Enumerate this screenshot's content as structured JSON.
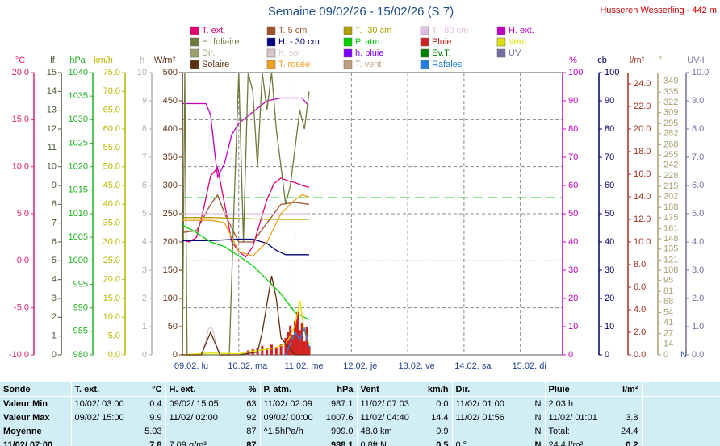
{
  "chart_data": {
    "type": "line",
    "title": "Semaine 09/02/26 - 15/02/26 (S 7)",
    "subtitle": "Husseren Wesserling - 442 m",
    "xlim": [
      0,
      162
    ],
    "xticks": [
      {
        "value": 0,
        "label": "09.02. lu"
      },
      {
        "value": 24,
        "label": "10.02. ma"
      },
      {
        "value": 48,
        "label": "11.02. me"
      },
      {
        "value": 72,
        "label": "12.02. je"
      },
      {
        "value": 96,
        "label": "13.02. ve"
      },
      {
        "value": 120,
        "label": "14.02. sa"
      },
      {
        "value": 144,
        "label": "15.02. di"
      }
    ],
    "grid": true,
    "axes": [
      {
        "label": "°C",
        "side": "left",
        "color": "#e0206f",
        "ylim": [
          -10,
          20
        ],
        "yticks": [
          {
            "value": -10,
            "label": "-10.0"
          },
          {
            "value": -5,
            "label": "-5.0"
          },
          {
            "value": 0,
            "label": "0.0"
          },
          {
            "value": 5,
            "label": "5.0"
          },
          {
            "value": 10,
            "label": "10.0"
          },
          {
            "value": 15,
            "label": "15.0"
          },
          {
            "value": 20,
            "label": "20.0"
          }
        ]
      },
      {
        "label": "lf",
        "side": "left",
        "color": "#4a5a3a",
        "ylim": [
          0,
          15
        ],
        "yticks": [
          0,
          1,
          2,
          3,
          4,
          5,
          6,
          7,
          8,
          9,
          10,
          11,
          12,
          13,
          14,
          15
        ]
      },
      {
        "label": "hPa",
        "side": "left",
        "color": "#20b020",
        "ylim": [
          980,
          1040
        ],
        "yticks": [
          980,
          985,
          990,
          995,
          1000,
          1005,
          1010,
          1015,
          1020,
          1025,
          1030,
          1035,
          1040
        ]
      },
      {
        "label": "km/h",
        "side": "left",
        "color": "#b8b800",
        "ylim": [
          0,
          75
        ],
        "yticks": [
          {
            "value": 0,
            "label": "0.0"
          },
          {
            "value": 5,
            "label": "5.0"
          },
          {
            "value": 10,
            "label": "10.0"
          },
          {
            "value": 15,
            "label": "15.0"
          },
          {
            "value": 20,
            "label": "20.0"
          },
          {
            "value": 25,
            "label": "25.0"
          },
          {
            "value": 30,
            "label": "30.0"
          },
          {
            "value": 35,
            "label": "35.0"
          },
          {
            "value": 40,
            "label": "40.0"
          },
          {
            "value": 45,
            "label": "45.0"
          },
          {
            "value": 50,
            "label": "50.0"
          },
          {
            "value": 55,
            "label": "55.0"
          },
          {
            "value": 60,
            "label": "60.0"
          },
          {
            "value": 65,
            "label": "65.0"
          },
          {
            "value": 70,
            "label": "70.0"
          },
          {
            "value": 75,
            "label": "75.0"
          }
        ]
      },
      {
        "label": "h",
        "side": "left",
        "color": "#b0b0b0",
        "ylim": [
          0,
          10
        ],
        "yticks": [
          0,
          1,
          2,
          3,
          4,
          5,
          6,
          7,
          8,
          9,
          10
        ]
      },
      {
        "label": "W/m²",
        "side": "left",
        "color": "#603010",
        "ylim": [
          0,
          500
        ],
        "yticks": [
          0,
          50,
          100,
          150,
          200,
          250,
          300,
          350,
          400,
          450,
          500
        ]
      },
      {
        "label": "%",
        "side": "right",
        "color": "#c000c0",
        "ylim": [
          0,
          100
        ],
        "yticks": [
          0,
          10,
          20,
          30,
          40,
          50,
          60,
          70,
          80,
          90,
          100
        ]
      },
      {
        "label": "cb",
        "side": "right",
        "color": "#000060",
        "ylim": [
          0,
          100
        ],
        "yticks": [
          0,
          10,
          20,
          30,
          40,
          50,
          60,
          70,
          80,
          90,
          100
        ]
      },
      {
        "label": "l/m²",
        "side": "right",
        "color": "#a03020",
        "ylim": [
          0,
          25
        ],
        "yticks": [
          {
            "value": 0,
            "label": "0.0"
          },
          {
            "value": 2,
            "label": "2.0"
          },
          {
            "value": 4,
            "label": "4.0"
          },
          {
            "value": 6,
            "label": "6.0"
          },
          {
            "value": 8,
            "label": "8.0"
          },
          {
            "value": 10,
            "label": "10.0"
          },
          {
            "value": 12,
            "label": "12.0"
          },
          {
            "value": 14,
            "label": "14.0"
          },
          {
            "value": 16,
            "label": "16.0"
          },
          {
            "value": 18,
            "label": "18.0"
          },
          {
            "value": 20,
            "label": "20.0"
          },
          {
            "value": 22,
            "label": "22.0"
          },
          {
            "value": 24,
            "label": "24.0"
          }
        ]
      },
      {
        "label": "°",
        "side": "right",
        "color": "#a8a070",
        "north_label": "N",
        "ylim": [
          0,
          360
        ],
        "yticks": [
          0,
          14,
          27,
          41,
          54,
          68,
          81,
          95,
          108,
          121,
          135,
          148,
          161,
          175,
          188,
          202,
          215,
          228,
          242,
          255,
          268,
          282,
          295,
          309,
          322,
          335,
          349
        ]
      },
      {
        "label": "UV-I",
        "side": "right",
        "color": "#7070a0",
        "ylim": [
          0,
          10
        ],
        "yticks": [
          {
            "value": 0,
            "label": "0.0"
          },
          {
            "value": 1,
            "label": "1.0"
          },
          {
            "value": 2,
            "label": "2.0"
          },
          {
            "value": 3,
            "label": "3.0"
          },
          {
            "value": 4,
            "label": "4.0"
          },
          {
            "value": 5,
            "label": "5.0"
          },
          {
            "value": 6,
            "label": "6.0"
          },
          {
            "value": 7,
            "label": "7.0"
          },
          {
            "value": 8,
            "label": "8.0"
          },
          {
            "value": 9,
            "label": "9.0"
          },
          {
            "value": 10,
            "label": "10.0"
          }
        ]
      }
    ],
    "series": [
      {
        "name": "T. ext.",
        "color": "#e0006f",
        "axis": "°C",
        "x": [
          0,
          3,
          6,
          9,
          12,
          15,
          18,
          21,
          24,
          27,
          30,
          33,
          36,
          39,
          42,
          45,
          48,
          51,
          54
        ],
        "values": [
          2.2,
          2.0,
          2.5,
          5.5,
          9,
          9.9,
          6,
          2,
          1,
          0.4,
          1.5,
          4,
          6.5,
          8.2,
          8.8,
          8.5,
          8.3,
          8,
          7.8
        ]
      },
      {
        "name": "T. 5 cm",
        "color": "#a0522d",
        "axis": "°C",
        "x": [
          0,
          6,
          12,
          15,
          18,
          24,
          30,
          36,
          42,
          48,
          54
        ],
        "values": [
          3,
          3.2,
          6,
          7,
          5,
          2,
          2,
          4,
          6,
          6.2,
          6
        ]
      },
      {
        "name": "T. -30 cm",
        "color": "#b0a000",
        "axis": "°C",
        "x": [
          0,
          12,
          24,
          36,
          54
        ],
        "values": [
          4.6,
          4.6,
          4.5,
          4.4,
          4.4
        ]
      },
      {
        "name": "T. -80 cm",
        "color": "#e0c0e0",
        "axis": "°C",
        "x": [
          0,
          54
        ],
        "values": [
          5,
          5
        ]
      },
      {
        "name": "H. ext.",
        "color": "#c000c0",
        "axis": "%",
        "x": [
          0,
          6,
          10,
          12,
          14,
          15,
          18,
          21,
          24,
          30,
          36,
          42,
          48,
          51,
          54
        ],
        "values": [
          89,
          89,
          89,
          85,
          70,
          63,
          68,
          78,
          82,
          86,
          90,
          91,
          91,
          91,
          88
        ]
      },
      {
        "name": "H. foliaire",
        "color": "#6b7b3b",
        "axis": "lf",
        "x": [
          0,
          1,
          2,
          4,
          12,
          20,
          22,
          24,
          26,
          28,
          30,
          32,
          34,
          36,
          38,
          40,
          42,
          44,
          46,
          48,
          50,
          52,
          54
        ],
        "values": [
          0,
          15,
          0,
          0,
          0,
          0,
          8,
          15,
          6,
          15,
          14,
          10,
          15,
          13,
          15,
          12,
          10,
          8,
          9,
          11,
          13,
          12,
          14
        ]
      },
      {
        "name": "H. - 30 cm",
        "color": "#000080",
        "axis": "cb",
        "x": [
          0,
          12,
          24,
          30,
          36,
          40,
          44,
          54
        ],
        "values": [
          40.5,
          40.5,
          41,
          41,
          39.5,
          37,
          35.5,
          35.5
        ]
      },
      {
        "name": "P. atm.",
        "color": "#00d000",
        "axis": "hPa",
        "x": [
          0,
          6,
          12,
          18,
          24,
          30,
          36,
          42,
          48,
          54
        ],
        "values": [
          1007.6,
          1006,
          1004,
          1003,
          1001,
          999,
          996,
          993,
          989,
          987.5
        ]
      },
      {
        "name": "Pluie",
        "color": "#d02020",
        "axis": "l/m²",
        "style": "bar",
        "x": [
          28,
          30,
          32,
          34,
          36,
          38,
          40,
          42,
          44,
          45,
          46,
          47,
          48,
          49,
          50,
          51,
          52,
          53,
          54
        ],
        "values": [
          0.4,
          0.5,
          0.6,
          0.8,
          0.6,
          0.9,
          0.7,
          1.0,
          1.5,
          2.0,
          2.6,
          1.8,
          3.0,
          3.8,
          2.2,
          2.8,
          1.2,
          2.5,
          0.8
        ]
      },
      {
        "name": "Vent",
        "color": "#e0e000",
        "axis": "km/h",
        "x": [
          0,
          12,
          24,
          30,
          36,
          40,
          44,
          46,
          48,
          50,
          52,
          54
        ],
        "values": [
          0,
          0.5,
          0.3,
          1,
          1.5,
          2,
          3,
          5,
          8,
          14.4,
          6,
          3
        ]
      },
      {
        "name": "Dir.",
        "color": "#a0a070",
        "axis": "°",
        "x": [],
        "values": []
      },
      {
        "name": "h. sol",
        "color": "#d8c8c8",
        "axis": "h",
        "x": [
          8,
          10,
          11,
          12,
          13,
          14,
          16
        ],
        "values": [
          0,
          0.5,
          0.9,
          1.0,
          0.9,
          0.5,
          0
        ]
      },
      {
        "name": "h. pluie",
        "color": "#8000ff",
        "axis": "h",
        "x": [],
        "values": []
      },
      {
        "name": "Ev.T.",
        "color": "#008000",
        "axis": "l/m²",
        "x": [],
        "values": []
      },
      {
        "name": "UV",
        "color": "#7070a0",
        "axis": "UV-I",
        "x": [],
        "values": []
      },
      {
        "name": "Solaire",
        "color": "#603010",
        "axis": "W/m²",
        "x": [
          0,
          8,
          10,
          12,
          14,
          16,
          24,
          32,
          34,
          36,
          38,
          40,
          42,
          48,
          54
        ],
        "values": [
          0,
          0,
          20,
          40,
          20,
          0,
          0,
          5,
          40,
          90,
          140,
          100,
          30,
          0,
          0
        ]
      },
      {
        "name": "T. rosée",
        "color": "#f0a020",
        "axis": "°C",
        "x": [
          0,
          6,
          12,
          15,
          18,
          21,
          24,
          30,
          36,
          42,
          48,
          51,
          54
        ],
        "values": [
          4.3,
          4.3,
          4.3,
          4.2,
          4.0,
          2.5,
          1,
          0.5,
          2,
          5,
          6.5,
          7,
          6.8
        ]
      },
      {
        "name": "T. vent",
        "color": "#c0a080",
        "axis": "°C",
        "x": [],
        "values": []
      },
      {
        "name": "Rafales",
        "color": "#2080e0",
        "axis": "km/h",
        "x": [
          44,
          46,
          48,
          50,
          52,
          54
        ],
        "values": [
          0,
          3,
          6,
          4,
          7,
          2
        ]
      }
    ]
  },
  "table": {
    "header": [
      "Sonde",
      "T. ext.",
      "°C",
      "H. ext.",
      "%",
      "P. atm.",
      "hPa",
      "Vent",
      "km/h",
      "Dir.",
      null,
      "Pluie",
      "l/m²"
    ],
    "rows": [
      [
        "Valeur Min",
        "10/02/ 03:00",
        "0.4",
        "09/02/ 15:05",
        "63",
        "11/02/ 02:09",
        "987.1",
        "11/02/ 07:03",
        "0.0",
        "11/02/ 01:00",
        "N",
        "2:03 h",
        null
      ],
      [
        "Valeur Max",
        "09/02/ 15:00",
        "9.9",
        "11/02/ 02:00",
        "92",
        "09/02/ 00:00",
        "1007.6",
        "11/02/ 04:40",
        "14.4",
        "11/02/ 01:56",
        "N",
        "11/02/ 01:01",
        "3.8"
      ],
      [
        "Moyenne",
        null,
        "5.03",
        null,
        "87",
        "^1.5hPa/h",
        "999.0",
        "48.0 km",
        "0.9",
        null,
        "N",
        "Total:",
        "24.4"
      ],
      [
        "11/02/ 07:00",
        null,
        "7.8",
        "7.09 g/m³",
        "87",
        null,
        "988.1",
        "0.8ft N",
        "0.5",
        "0 °",
        "N",
        "24.4 l/m²",
        "0.2"
      ]
    ]
  }
}
